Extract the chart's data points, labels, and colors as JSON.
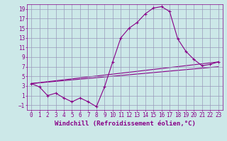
{
  "xlabel": "Windchill (Refroidissement éolien,°C)",
  "bg_color": "#cce8e8",
  "grid_color": "#9999bb",
  "line_color": "#880088",
  "xlim": [
    -0.5,
    23.5
  ],
  "ylim": [
    -2.0,
    20.0
  ],
  "xticks": [
    0,
    1,
    2,
    3,
    4,
    5,
    6,
    7,
    8,
    9,
    10,
    11,
    12,
    13,
    14,
    15,
    16,
    17,
    18,
    19,
    20,
    21,
    22,
    23
  ],
  "yticks": [
    -1,
    1,
    3,
    5,
    7,
    9,
    11,
    13,
    15,
    17,
    19
  ],
  "curve1_x": [
    0,
    1,
    2,
    3,
    4,
    5,
    6,
    7,
    8,
    9,
    10,
    11,
    12,
    13,
    14,
    15,
    16,
    17,
    18,
    19,
    20,
    21,
    22,
    23
  ],
  "curve1_y": [
    3.5,
    2.8,
    1.0,
    1.5,
    0.5,
    -0.3,
    0.5,
    -0.3,
    -1.3,
    2.8,
    8.0,
    13.0,
    15.0,
    16.2,
    18.0,
    19.2,
    19.5,
    18.5,
    12.8,
    10.2,
    8.5,
    7.2,
    7.5,
    8.0
  ],
  "curve2_x": [
    0,
    23
  ],
  "curve2_y": [
    3.5,
    8.0
  ],
  "curve3_x": [
    0,
    23
  ],
  "curve3_y": [
    3.5,
    7.0
  ],
  "font_size": 6.5,
  "tick_font_size": 5.5
}
